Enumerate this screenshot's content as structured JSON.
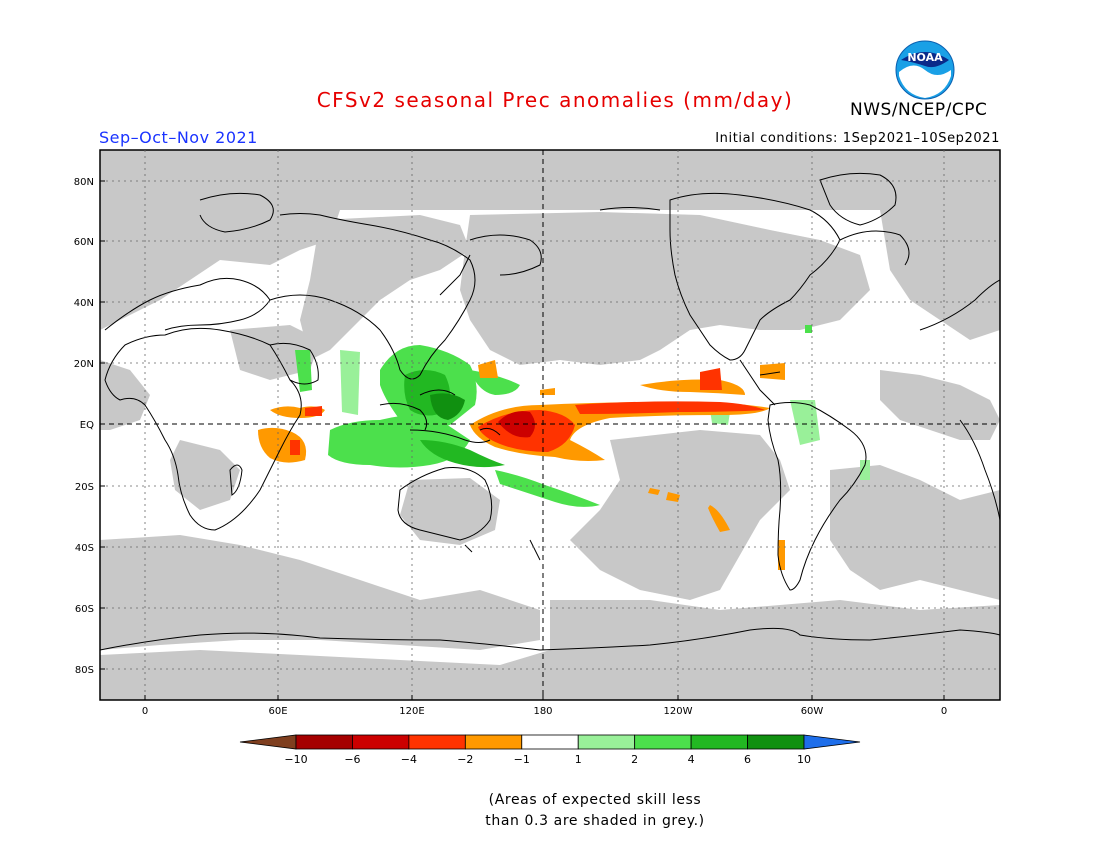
{
  "title": "CFSv2 seasonal Prec anomalies (mm/day)",
  "agency": "NWS/NCEP/CPC",
  "logo_text": "NOAA",
  "season": "Sep–Oct–Nov 2021",
  "initial_conditions": "Initial conditions: 1Sep2021–10Sep2021",
  "lat_labels": [
    "80N",
    "60N",
    "40N",
    "20N",
    "EQ",
    "20S",
    "40S",
    "60S",
    "80S"
  ],
  "lon_labels": [
    "0",
    "60E",
    "120E",
    "180",
    "120W",
    "60W",
    "0"
  ],
  "colorbar": {
    "ticks": [
      "−10",
      "−6",
      "−4",
      "−2",
      "−1",
      "1",
      "2",
      "4",
      "6",
      "10"
    ],
    "colors": [
      "#7f3f1f",
      "#a50000",
      "#cc0000",
      "#ff3300",
      "#ff9900",
      "#ffffff",
      "#99f099",
      "#4ce04c",
      "#22b822",
      "#109010",
      "#1e6eea"
    ]
  },
  "footnote": {
    "line1": "(Areas of expected skill less",
    "line2": "than 0.3 are shaded in grey.)"
  },
  "colors": {
    "grey_mask": "#c8c8c8",
    "title_red": "#e60000",
    "season_blue": "#1a33ff"
  }
}
